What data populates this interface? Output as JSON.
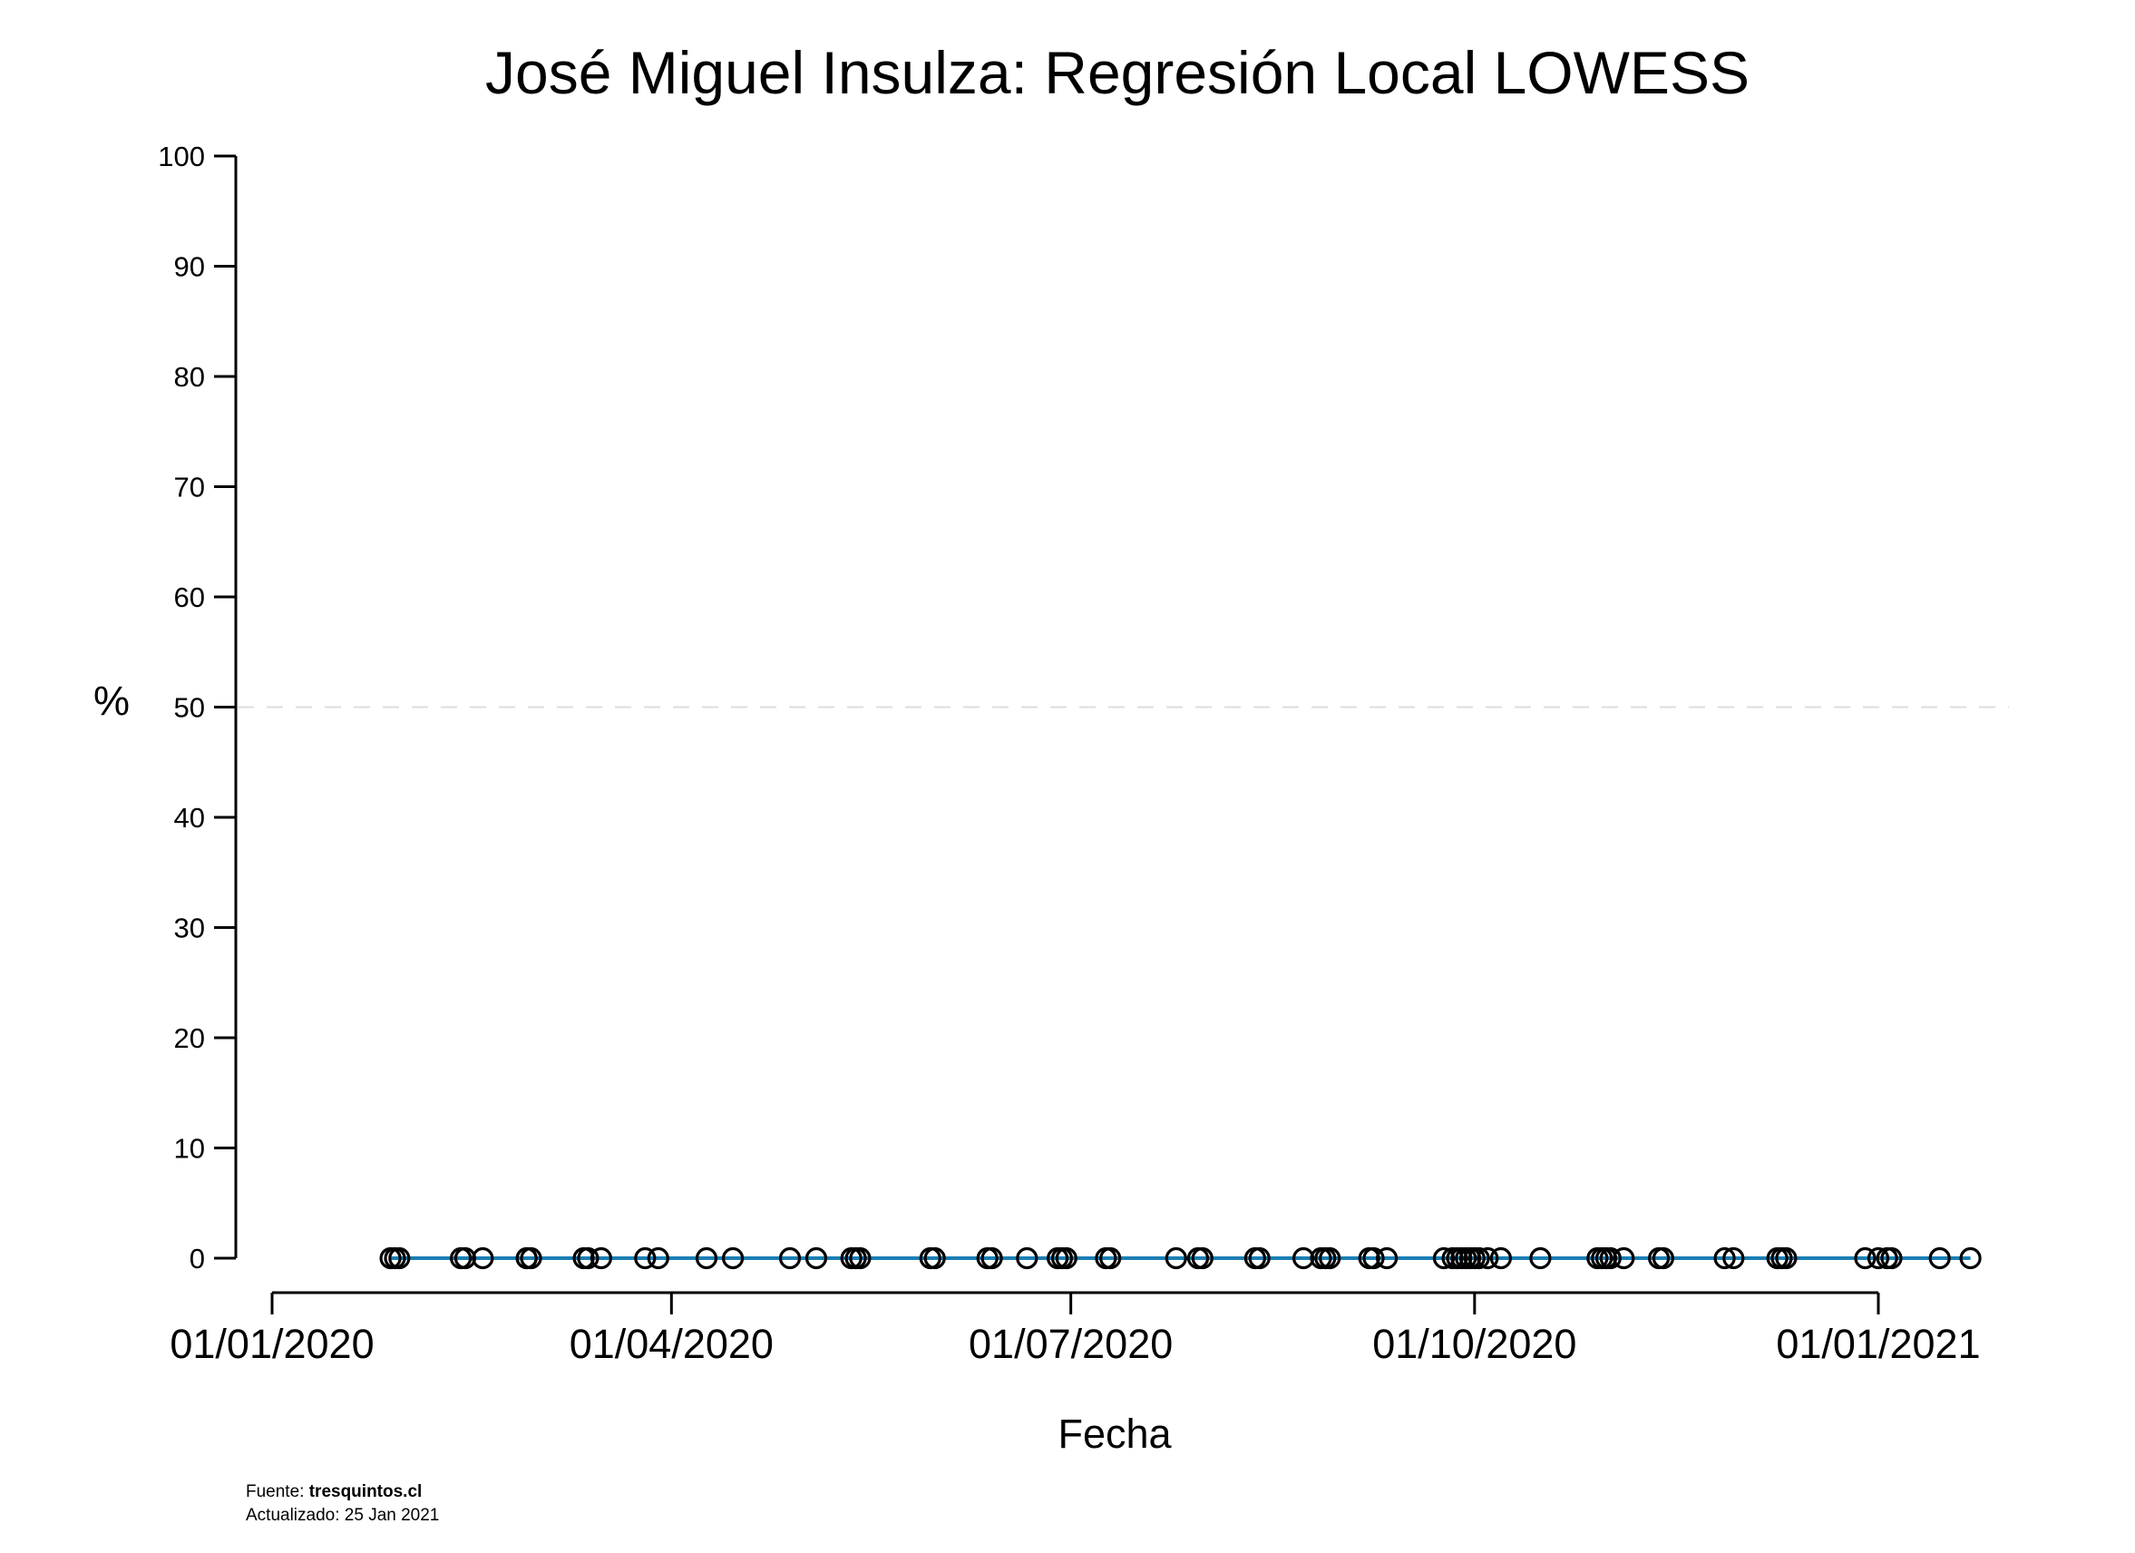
{
  "chart_data": {
    "type": "scatter",
    "title": "José Miguel Insulza: Regresión Local LOWESS",
    "xlabel": "Fecha",
    "ylabel": "%",
    "ylim": [
      0,
      100
    ],
    "yticks": [
      0,
      10,
      20,
      30,
      40,
      50,
      60,
      70,
      80,
      90,
      100
    ],
    "xlim": [
      "2020-01-01",
      "2021-01-28"
    ],
    "xticks": [
      {
        "date": "2020-01-01",
        "label": "01/01/2020"
      },
      {
        "date": "2020-04-01",
        "label": "01/04/2020"
      },
      {
        "date": "2020-07-01",
        "label": "01/07/2020"
      },
      {
        "date": "2020-10-01",
        "label": "01/10/2020"
      },
      {
        "date": "2021-01-01",
        "label": "01/01/2021"
      }
    ],
    "reference_line": {
      "y": 50,
      "style": "dashed",
      "color": "#dddddd"
    },
    "grid": false,
    "series": [
      {
        "kind": "points",
        "marker": "open-circle",
        "color": "#000000",
        "points": [
          {
            "x": "2020-01-28",
            "y": 0
          },
          {
            "x": "2020-01-29",
            "y": 0
          },
          {
            "x": "2020-01-30",
            "y": 0
          },
          {
            "x": "2020-02-13",
            "y": 0
          },
          {
            "x": "2020-02-14",
            "y": 0
          },
          {
            "x": "2020-02-18",
            "y": 0
          },
          {
            "x": "2020-02-28",
            "y": 0
          },
          {
            "x": "2020-02-28",
            "y": 0
          },
          {
            "x": "2020-02-29",
            "y": 0
          },
          {
            "x": "2020-03-12",
            "y": 0
          },
          {
            "x": "2020-03-13",
            "y": 0
          },
          {
            "x": "2020-03-16",
            "y": 0
          },
          {
            "x": "2020-03-26",
            "y": 0
          },
          {
            "x": "2020-03-29",
            "y": 0
          },
          {
            "x": "2020-04-09",
            "y": 0
          },
          {
            "x": "2020-04-15",
            "y": 0
          },
          {
            "x": "2020-04-28",
            "y": 0
          },
          {
            "x": "2020-05-04",
            "y": 0
          },
          {
            "x": "2020-05-12",
            "y": 0
          },
          {
            "x": "2020-05-13",
            "y": 0
          },
          {
            "x": "2020-05-14",
            "y": 0
          },
          {
            "x": "2020-05-30",
            "y": 0
          },
          {
            "x": "2020-05-31",
            "y": 0
          },
          {
            "x": "2020-06-12",
            "y": 0
          },
          {
            "x": "2020-06-13",
            "y": 0
          },
          {
            "x": "2020-06-21",
            "y": 0
          },
          {
            "x": "2020-06-28",
            "y": 0
          },
          {
            "x": "2020-06-29",
            "y": 0
          },
          {
            "x": "2020-06-30",
            "y": 0
          },
          {
            "x": "2020-07-09",
            "y": 0
          },
          {
            "x": "2020-07-10",
            "y": 0
          },
          {
            "x": "2020-07-25",
            "y": 0
          },
          {
            "x": "2020-07-30",
            "y": 0
          },
          {
            "x": "2020-07-31",
            "y": 0
          },
          {
            "x": "2020-08-12",
            "y": 0
          },
          {
            "x": "2020-08-13",
            "y": 0
          },
          {
            "x": "2020-08-23",
            "y": 0
          },
          {
            "x": "2020-08-27",
            "y": 0
          },
          {
            "x": "2020-08-28",
            "y": 0
          },
          {
            "x": "2020-08-29",
            "y": 0
          },
          {
            "x": "2020-09-07",
            "y": 0
          },
          {
            "x": "2020-09-08",
            "y": 0
          },
          {
            "x": "2020-09-11",
            "y": 0
          },
          {
            "x": "2020-09-24",
            "y": 0
          },
          {
            "x": "2020-09-26",
            "y": 0
          },
          {
            "x": "2020-09-27",
            "y": 0
          },
          {
            "x": "2020-09-28",
            "y": 0
          },
          {
            "x": "2020-09-29",
            "y": 0
          },
          {
            "x": "2020-09-30",
            "y": 0
          },
          {
            "x": "2020-10-01",
            "y": 0
          },
          {
            "x": "2020-10-02",
            "y": 0
          },
          {
            "x": "2020-10-04",
            "y": 0
          },
          {
            "x": "2020-10-07",
            "y": 0
          },
          {
            "x": "2020-10-16",
            "y": 0
          },
          {
            "x": "2020-10-29",
            "y": 0
          },
          {
            "x": "2020-10-30",
            "y": 0
          },
          {
            "x": "2020-10-31",
            "y": 0
          },
          {
            "x": "2020-11-01",
            "y": 0
          },
          {
            "x": "2020-11-04",
            "y": 0
          },
          {
            "x": "2020-11-12",
            "y": 0
          },
          {
            "x": "2020-11-13",
            "y": 0
          },
          {
            "x": "2020-11-27",
            "y": 0
          },
          {
            "x": "2020-11-29",
            "y": 0
          },
          {
            "x": "2020-12-09",
            "y": 0
          },
          {
            "x": "2020-12-10",
            "y": 0
          },
          {
            "x": "2020-12-11",
            "y": 0
          },
          {
            "x": "2020-12-29",
            "y": 0
          },
          {
            "x": "2021-01-01",
            "y": 0
          },
          {
            "x": "2021-01-03",
            "y": 0
          },
          {
            "x": "2021-01-04",
            "y": 0
          },
          {
            "x": "2021-01-15",
            "y": 0
          },
          {
            "x": "2021-01-22",
            "y": 0
          }
        ]
      },
      {
        "kind": "line",
        "color": "#1b7fb4",
        "points": [
          {
            "x": "2020-01-28",
            "y": 0
          },
          {
            "x": "2021-01-22",
            "y": 0
          }
        ]
      }
    ]
  },
  "footer": {
    "source_label": "Fuente: ",
    "source_name": "tresquintos.cl",
    "updated": "Actualizado: 25 Jan 2021"
  }
}
